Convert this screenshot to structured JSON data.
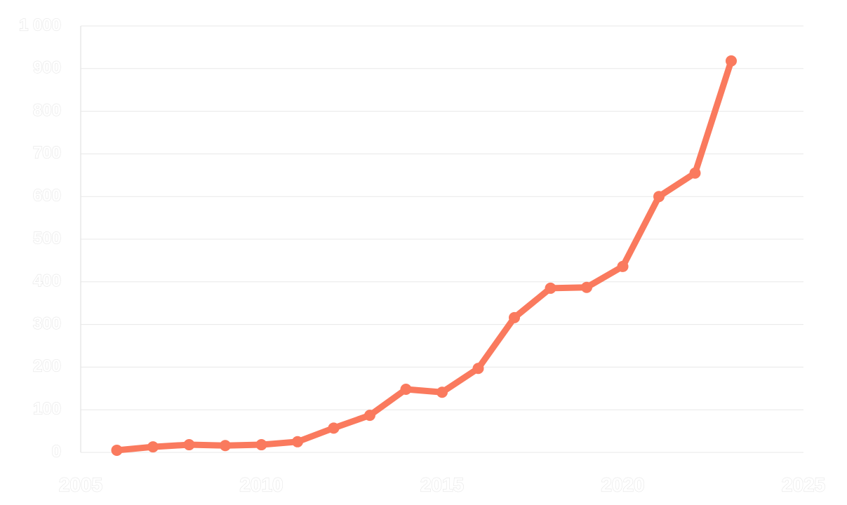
{
  "chart_data": {
    "type": "line",
    "x": [
      2006,
      2007,
      2008,
      2009,
      2010,
      2011,
      2012,
      2013,
      2014,
      2015,
      2016,
      2017,
      2018,
      2019,
      2020,
      2021,
      2022,
      2023
    ],
    "series": [
      {
        "color": "#fa7a5e",
        "values": [
          5,
          13,
          18,
          16,
          18,
          25,
          57,
          87,
          148,
          141,
          197,
          316,
          385,
          387,
          436,
          600,
          655,
          918
        ]
      }
    ],
    "xlim": [
      2005,
      2025
    ],
    "xticks": [
      2005,
      2010,
      2015,
      2020,
      2025
    ],
    "ylim": [
      0,
      1000
    ],
    "yticks": [
      0,
      100,
      200,
      300,
      400,
      500,
      600,
      700,
      800,
      900,
      {
        "value": 1000,
        "label": "1 000"
      }
    ],
    "grid": true
  }
}
